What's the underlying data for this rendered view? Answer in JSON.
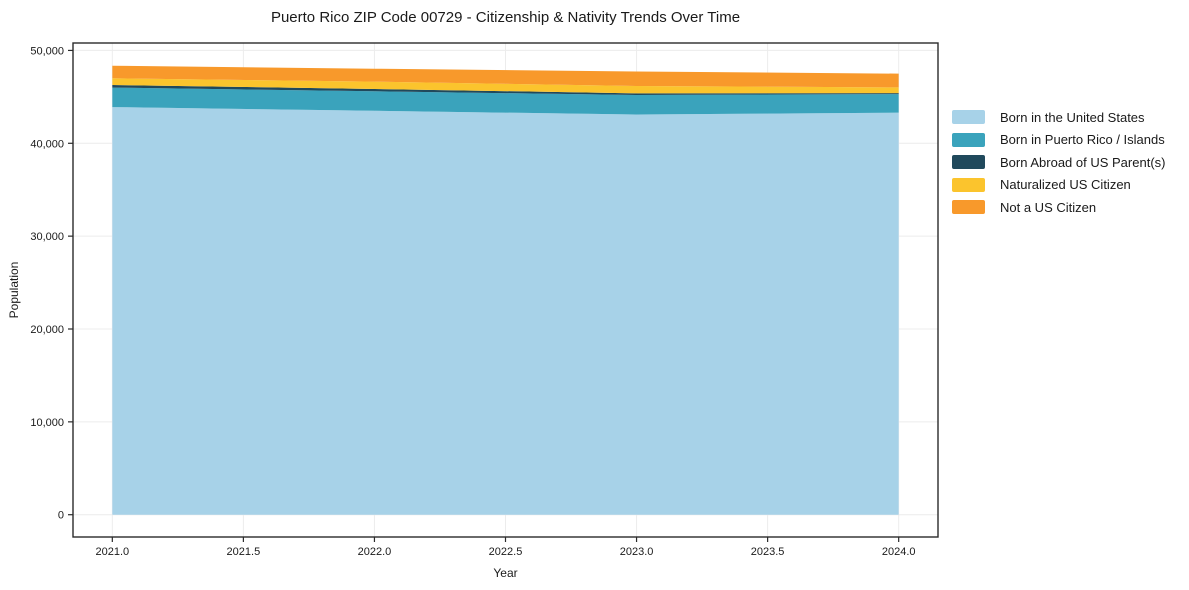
{
  "chart_data": {
    "type": "area",
    "stacked": true,
    "title": "Puerto Rico ZIP Code 00729 - Citizenship & Nativity Trends Over Time",
    "xlabel": "Year",
    "ylabel": "Population",
    "x": [
      2021,
      2022,
      2023,
      2024
    ],
    "series": [
      {
        "name": "Born in the United States",
        "color": "#a7d2e8",
        "values": [
          43900,
          43500,
          43100,
          43300
        ]
      },
      {
        "name": "Born in Puerto Rico / Islands",
        "color": "#3aa3bc",
        "values": [
          2100,
          2100,
          2100,
          2000
        ]
      },
      {
        "name": "Born Abroad of US Parent(s)",
        "color": "#20495c",
        "values": [
          280,
          250,
          180,
          100
        ]
      },
      {
        "name": "Naturalized US Citizen",
        "color": "#fbc42d",
        "values": [
          720,
          790,
          790,
          620
        ]
      },
      {
        "name": "Not a US Citizen",
        "color": "#f8992b",
        "values": [
          1350,
          1390,
          1560,
          1480
        ]
      }
    ],
    "xlim": [
      2020.85,
      2024.15
    ],
    "ylim": [
      -2400,
      50800
    ],
    "xticks": {
      "values": [
        2021.0,
        2021.5,
        2022.0,
        2022.5,
        2023.0,
        2023.5,
        2024.0
      ],
      "labels": [
        "2021.0",
        "2021.5",
        "2022.0",
        "2022.5",
        "2023.0",
        "2023.5",
        "2024.0"
      ]
    },
    "yticks": {
      "values": [
        0,
        10000,
        20000,
        30000,
        40000,
        50000
      ],
      "labels": [
        "0",
        "10,000",
        "20,000",
        "30,000",
        "40,000",
        "50,000"
      ]
    },
    "grid": true,
    "legend_position": "right",
    "colors": {
      "grid": "#ececec",
      "spine": "#2a2a2a",
      "tick": "#2a2a2a",
      "background": "#ffffff"
    }
  }
}
